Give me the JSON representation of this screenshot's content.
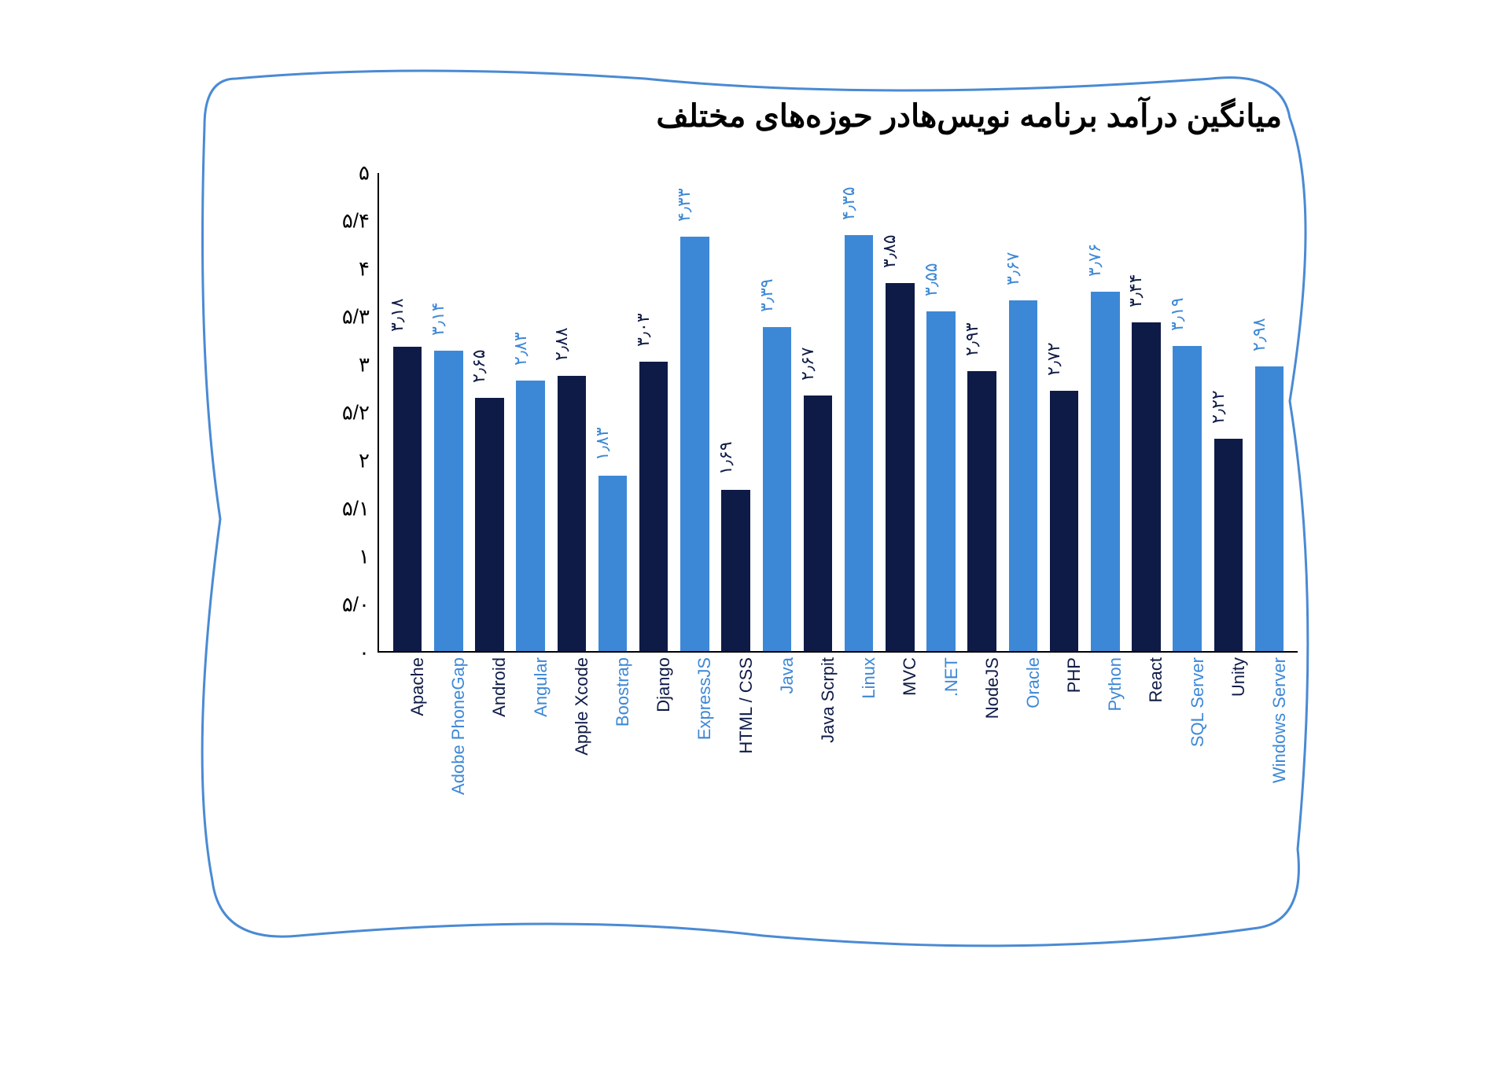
{
  "chart": {
    "type": "bar",
    "title": "میانگین درآمد برنامه نویس‌هادر حوزه‌های مختلف",
    "title_fontsize": 40,
    "title_color": "#000000",
    "background_color": "#ffffff",
    "border_color": "#4a8ad4",
    "border_width": 3,
    "axis_color": "#000000",
    "ylim": [
      0,
      5
    ],
    "ytick_step": 0.5,
    "yticks": [
      "۰",
      "۵/۰",
      "۱",
      "۵/۱",
      "۲",
      "۵/۲",
      "۳",
      "۵/۳",
      "۴",
      "۵/۴",
      "۵"
    ],
    "ytick_fontsize": 26,
    "ytick_color": "#000000",
    "bar_width_ratio": 0.7,
    "label_fontsize": 22,
    "colors": {
      "dark": "#0f1b47",
      "light": "#3d88d6"
    },
    "bars": [
      {
        "category": "Apache",
        "value": 3.18,
        "value_label": "۳٫۱۸",
        "color": "dark"
      },
      {
        "category": "Adobe PhoneGap",
        "value": 3.14,
        "value_label": "۳٫۱۴",
        "color": "light"
      },
      {
        "category": "Android",
        "value": 2.65,
        "value_label": "۲٫۶۵",
        "color": "dark"
      },
      {
        "category": "Angular",
        "value": 2.83,
        "value_label": "۲٫۸۳",
        "color": "light"
      },
      {
        "category": "Apple Xcode",
        "value": 2.88,
        "value_label": "۲٫۸۸",
        "color": "dark"
      },
      {
        "category": "Boostrap",
        "value": 1.83,
        "value_label": "۱٫۸۳",
        "color": "light"
      },
      {
        "category": "Django",
        "value": 3.03,
        "value_label": "۳٫۰۳",
        "color": "dark"
      },
      {
        "category": "ExpressJS",
        "value": 4.33,
        "value_label": "۴٫۳۳",
        "color": "light"
      },
      {
        "category": "HTML / CSS",
        "value": 1.69,
        "value_label": "۱٫۶۹",
        "color": "dark"
      },
      {
        "category": "Java",
        "value": 3.39,
        "value_label": "۳٫۳۹",
        "color": "light"
      },
      {
        "category": "Java Scrpit",
        "value": 2.67,
        "value_label": "۲٫۶۷",
        "color": "dark"
      },
      {
        "category": "Linux",
        "value": 4.35,
        "value_label": "۴٫۳۵",
        "color": "light"
      },
      {
        "category": "MVC",
        "value": 3.85,
        "value_label": "۳٫۸۵",
        "color": "dark"
      },
      {
        "category": ".NET",
        "value": 3.55,
        "value_label": "۳٫۵۵",
        "color": "light"
      },
      {
        "category": "NodeJS",
        "value": 2.93,
        "value_label": "۲٫۹۳",
        "color": "dark"
      },
      {
        "category": "Oracle",
        "value": 3.67,
        "value_label": "۳٫۶۷",
        "color": "light"
      },
      {
        "category": "PHP",
        "value": 2.72,
        "value_label": "۲٫۷۲",
        "color": "dark"
      },
      {
        "category": "Python",
        "value": 3.76,
        "value_label": "۳٫۷۶",
        "color": "light"
      },
      {
        "category": "React",
        "value": 3.44,
        "value_label": "۳٫۴۴",
        "color": "dark"
      },
      {
        "category": "SQL Server",
        "value": 3.19,
        "value_label": "۳٫۱۹",
        "color": "light"
      },
      {
        "category": "Unity",
        "value": 2.22,
        "value_label": "۲٫۲۲",
        "color": "dark"
      },
      {
        "category": "Windows Server",
        "value": 2.98,
        "value_label": "۲٫۹۸",
        "color": "light"
      }
    ]
  }
}
